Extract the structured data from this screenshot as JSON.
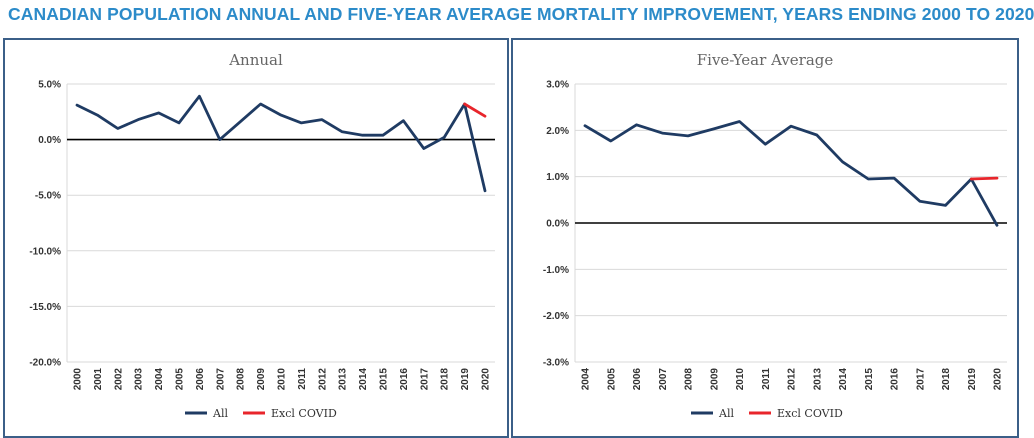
{
  "title": "CANADIAN POPULATION ANNUAL AND FIVE-YEAR AVERAGE MORTALITY IMPROVEMENT, YEARS ENDING 2000 TO 2020",
  "colors": {
    "all": "#1f3b63",
    "excl": "#e8252b",
    "title": "#2c8bc9",
    "border": "#3b5f88"
  },
  "chart_data": [
    {
      "type": "line",
      "title": "Annual",
      "categories": [
        "2000",
        "2001",
        "2002",
        "2003",
        "2004",
        "2005",
        "2006",
        "2007",
        "2008",
        "2009",
        "2010",
        "2011",
        "2012",
        "2013",
        "2014",
        "2015",
        "2016",
        "2017",
        "2018",
        "2019",
        "2020"
      ],
      "ylim": [
        -20,
        5
      ],
      "yticks": [
        5,
        0,
        -5,
        -10,
        -15,
        -20
      ],
      "ytick_labels": [
        "5.0%",
        "0.0%",
        "-5.0%",
        "-10.0%",
        "-15.0%",
        "-20.0%"
      ],
      "zero_line": true,
      "legend": "bottom",
      "series": [
        {
          "name": "All",
          "values": [
            3.1,
            2.2,
            1.0,
            1.8,
            2.4,
            1.5,
            3.9,
            0.0,
            1.6,
            3.2,
            2.2,
            1.5,
            1.8,
            0.7,
            0.4,
            0.4,
            1.7,
            -0.8,
            0.2,
            3.2,
            -4.6
          ]
        },
        {
          "name": "Excl COVID",
          "values": [
            null,
            null,
            null,
            null,
            null,
            null,
            null,
            null,
            null,
            null,
            null,
            null,
            null,
            null,
            null,
            null,
            null,
            null,
            null,
            3.2,
            2.1
          ]
        }
      ]
    },
    {
      "type": "line",
      "title": "Five-Year Average",
      "categories": [
        "2004",
        "2005",
        "2006",
        "2007",
        "2008",
        "2009",
        "2010",
        "2011",
        "2012",
        "2013",
        "2014",
        "2015",
        "2016",
        "2017",
        "2018",
        "2019",
        "2020"
      ],
      "ylim": [
        -3,
        3
      ],
      "yticks": [
        3,
        2,
        1,
        0,
        -1,
        -2,
        -3
      ],
      "ytick_labels": [
        "3.0%",
        "2.0%",
        "1.0%",
        "0.0%",
        "-1.0%",
        "-2.0%",
        "-3.0%"
      ],
      "zero_line": true,
      "legend": "bottom",
      "series": [
        {
          "name": "All",
          "values": [
            2.1,
            1.77,
            2.12,
            1.94,
            1.88,
            2.03,
            2.19,
            1.7,
            2.09,
            1.9,
            1.32,
            0.95,
            0.97,
            0.47,
            0.38,
            0.95,
            -0.05
          ]
        },
        {
          "name": "Excl COVID",
          "values": [
            null,
            null,
            null,
            null,
            null,
            null,
            null,
            null,
            null,
            null,
            null,
            null,
            null,
            null,
            null,
            0.95,
            0.97
          ]
        }
      ]
    }
  ]
}
